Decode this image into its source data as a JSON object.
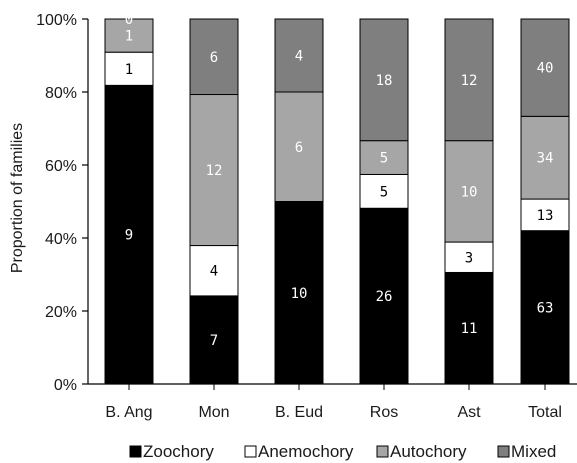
{
  "chart_data": {
    "type": "bar",
    "stacked": true,
    "normalized": true,
    "categories": [
      "B. Ang",
      "Mon",
      "B. Eud",
      "Ros",
      "Ast",
      "Total"
    ],
    "series": [
      {
        "name": "Zoochory",
        "values": [
          9,
          7,
          10,
          26,
          11,
          63
        ],
        "color": "#000000",
        "label_color": "#ffffff"
      },
      {
        "name": "Anemochory",
        "values": [
          1,
          4,
          0,
          5,
          3,
          13
        ],
        "color": "#ffffff",
        "label_color": "#000000"
      },
      {
        "name": "Autochory",
        "values": [
          1,
          12,
          6,
          5,
          10,
          34
        ],
        "color": "#a6a6a6",
        "label_color": "#ffffff"
      },
      {
        "name": "Mixed",
        "values": [
          0,
          6,
          4,
          18,
          12,
          40
        ],
        "color": "#7f7f7f",
        "label_color": "#ffffff"
      }
    ],
    "ylabel": "Proportion of families",
    "xlabel": "",
    "ylim": [
      0,
      100
    ],
    "yticks": [
      "0%",
      "20%",
      "40%",
      "60%",
      "80%",
      "100%"
    ],
    "legend_position": "bottom"
  }
}
